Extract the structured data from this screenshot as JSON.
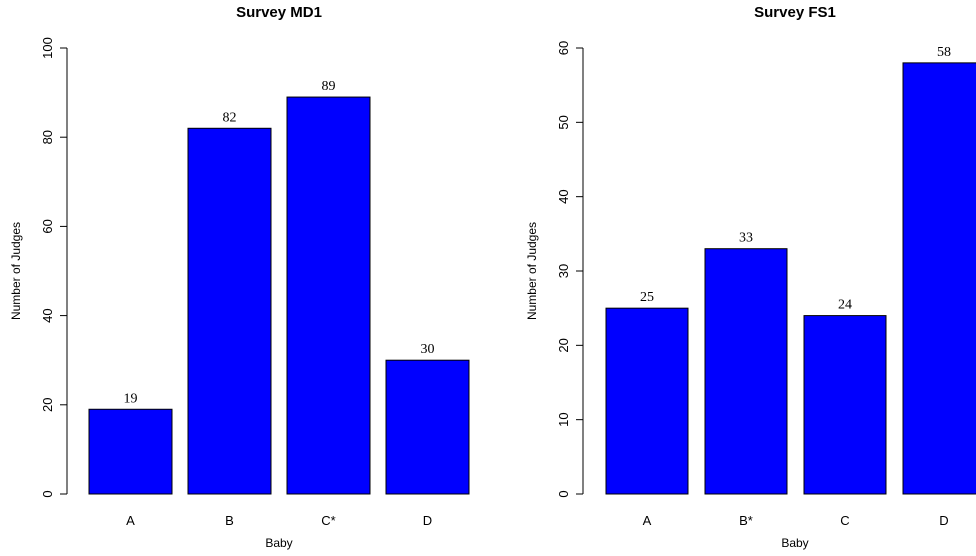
{
  "chart_data": [
    {
      "type": "bar",
      "title": "Survey MD1",
      "xlabel": "Baby",
      "ylabel": "Number of Judges",
      "categories": [
        "A",
        "B",
        "C*",
        "D"
      ],
      "values": [
        19,
        82,
        89,
        30
      ],
      "data_labels": [
        "19",
        "82",
        "89",
        "30"
      ],
      "ylim": [
        0,
        100
      ],
      "yticks": [
        0,
        20,
        40,
        60,
        80,
        100
      ],
      "bar_color": "#0000ff",
      "grid": false
    },
    {
      "type": "bar",
      "title": "Survey FS1",
      "xlabel": "Baby",
      "ylabel": "Number of Judges",
      "categories": [
        "A",
        "B*",
        "C",
        "D"
      ],
      "values": [
        25,
        33,
        24,
        58
      ],
      "data_labels": [
        "25",
        "33",
        "24",
        "58"
      ],
      "ylim": [
        0,
        60
      ],
      "yticks": [
        0,
        10,
        20,
        30,
        40,
        50,
        60
      ],
      "bar_color": "#0000ff",
      "grid": false
    }
  ]
}
